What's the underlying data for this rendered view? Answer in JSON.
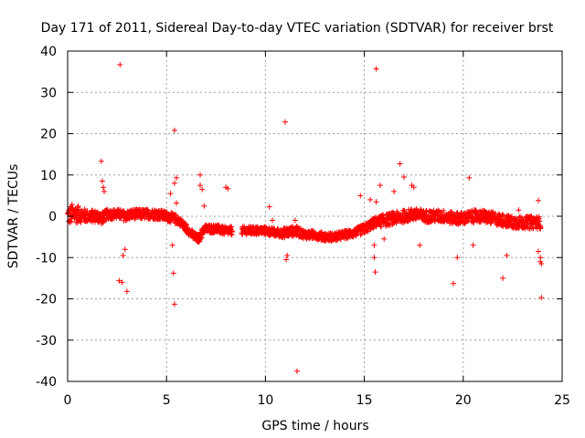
{
  "chart_data": {
    "type": "scatter",
    "title": "Day 171 of 2011, Sidereal Day-to-day VTEC variation (SDTVAR) for receiver brst",
    "xlabel": "GPS time / hours",
    "ylabel": "SDTVAR / TECUs",
    "xlim": [
      0,
      25
    ],
    "ylim": [
      -40,
      40
    ],
    "xticks": [
      0,
      5,
      10,
      15,
      20,
      25
    ],
    "yticks": [
      -40,
      -30,
      -20,
      -10,
      0,
      10,
      20,
      30,
      40
    ],
    "xtick_labels": [
      "0",
      "5",
      "10",
      "15",
      "20",
      "25"
    ],
    "ytick_labels": [
      "-40",
      "-30",
      "-20",
      "-10",
      "0",
      "10",
      "20",
      "30",
      "40"
    ],
    "grid": true,
    "marker": "+",
    "series": [
      {
        "name": "SDTVAR",
        "color": "#ff0000",
        "band_x": [
          0.0,
          0.2,
          0.5,
          1.0,
          1.5,
          1.7,
          2.0,
          2.3,
          2.6,
          2.9,
          3.2,
          3.6,
          4.0,
          4.5,
          5.0,
          5.3,
          5.6,
          5.8,
          6.0,
          6.2,
          6.4,
          6.6,
          6.9,
          7.2,
          7.5,
          7.9,
          8.3
        ],
        "band_center": [
          0.0,
          0.5,
          0.5,
          0.0,
          0.0,
          -0.5,
          0.5,
          0.5,
          0.5,
          0.0,
          0.5,
          0.5,
          0.5,
          0.5,
          0.0,
          -0.5,
          -1.0,
          -2.0,
          -3.0,
          -4.0,
          -5.0,
          -5.5,
          -3.0,
          -3.0,
          -3.0,
          -3.5,
          -3.5
        ],
        "band_halfwidth": [
          2.0,
          2.5,
          2.0,
          1.5,
          1.5,
          1.5,
          1.2,
          1.2,
          1.2,
          1.2,
          1.2,
          1.2,
          1.2,
          1.2,
          1.2,
          1.2,
          1.0,
          1.0,
          1.0,
          1.0,
          1.0,
          1.0,
          1.0,
          1.0,
          1.0,
          1.0,
          1.0
        ],
        "band2_x": [
          8.8,
          9.5,
          10.0,
          10.5,
          11.0,
          11.5,
          12.0,
          12.5,
          13.0,
          13.5,
          14.0,
          14.5,
          15.0,
          15.5,
          16.0,
          16.5,
          17.0,
          17.5,
          18.0,
          18.5,
          19.0,
          19.5,
          20.0,
          20.5,
          21.0,
          21.5,
          22.0,
          22.5,
          23.0,
          23.5,
          23.9
        ],
        "band2_center": [
          -3.5,
          -3.5,
          -3.5,
          -4.0,
          -4.0,
          -3.5,
          -4.5,
          -4.5,
          -5.0,
          -5.0,
          -4.5,
          -4.0,
          -3.0,
          -1.5,
          -1.0,
          -0.5,
          0.0,
          0.5,
          0.0,
          0.0,
          0.0,
          -0.5,
          -0.5,
          0.0,
          0.0,
          -0.5,
          -1.0,
          -1.5,
          -1.5,
          -1.5,
          -1.5
        ],
        "band2_halfwidth": [
          1.0,
          1.0,
          1.0,
          1.0,
          1.2,
          1.2,
          1.0,
          1.0,
          1.0,
          1.0,
          1.0,
          1.0,
          1.2,
          1.2,
          1.5,
          1.5,
          1.5,
          1.5,
          1.5,
          1.5,
          1.5,
          1.5,
          1.5,
          1.5,
          1.5,
          1.5,
          1.5,
          1.5,
          1.5,
          1.5,
          1.5
        ],
        "outliers": [
          [
            2.65,
            36.7
          ],
          [
            2.6,
            -15.6
          ],
          [
            2.75,
            -16.0
          ],
          [
            3.0,
            -18.2
          ],
          [
            2.8,
            -9.5
          ],
          [
            2.9,
            -8.0
          ],
          [
            1.7,
            13.3
          ],
          [
            1.75,
            8.5
          ],
          [
            1.8,
            7.0
          ],
          [
            1.85,
            6.0
          ],
          [
            5.4,
            20.8
          ],
          [
            5.4,
            -21.3
          ],
          [
            5.35,
            -13.8
          ],
          [
            5.5,
            9.3
          ],
          [
            5.4,
            8.0
          ],
          [
            5.3,
            -7.0
          ],
          [
            5.5,
            3.2
          ],
          [
            5.2,
            5.5
          ],
          [
            6.7,
            10.0
          ],
          [
            6.7,
            7.5
          ],
          [
            6.8,
            6.5
          ],
          [
            6.9,
            2.5
          ],
          [
            8.0,
            7.0
          ],
          [
            8.1,
            6.7
          ],
          [
            10.2,
            2.3
          ],
          [
            10.35,
            -1.0
          ],
          [
            11.0,
            22.8
          ],
          [
            11.1,
            -9.5
          ],
          [
            11.05,
            -10.5
          ],
          [
            11.6,
            -37.5
          ],
          [
            11.5,
            -1.0
          ],
          [
            15.6,
            35.7
          ],
          [
            15.55,
            -13.5
          ],
          [
            15.5,
            -7.0
          ],
          [
            15.3,
            4.0
          ],
          [
            15.6,
            3.5
          ],
          [
            15.8,
            7.5
          ],
          [
            16.0,
            -5.5
          ],
          [
            15.5,
            -10.0
          ],
          [
            14.8,
            5.0
          ],
          [
            15.1,
            -2.0
          ],
          [
            16.8,
            12.7
          ],
          [
            17.0,
            9.5
          ],
          [
            17.5,
            7.0
          ],
          [
            17.4,
            7.5
          ],
          [
            17.8,
            -7.0
          ],
          [
            16.5,
            6.0
          ],
          [
            19.5,
            -16.3
          ],
          [
            19.7,
            -10.0
          ],
          [
            20.3,
            9.3
          ],
          [
            20.5,
            -7.0
          ],
          [
            22.0,
            -15.0
          ],
          [
            22.2,
            -9.5
          ],
          [
            22.8,
            1.5
          ],
          [
            23.8,
            3.8
          ],
          [
            23.95,
            -19.7
          ],
          [
            23.9,
            -11.0
          ],
          [
            23.95,
            -11.5
          ],
          [
            23.8,
            -8.5
          ],
          [
            23.9,
            -10.0
          ]
        ]
      }
    ]
  }
}
